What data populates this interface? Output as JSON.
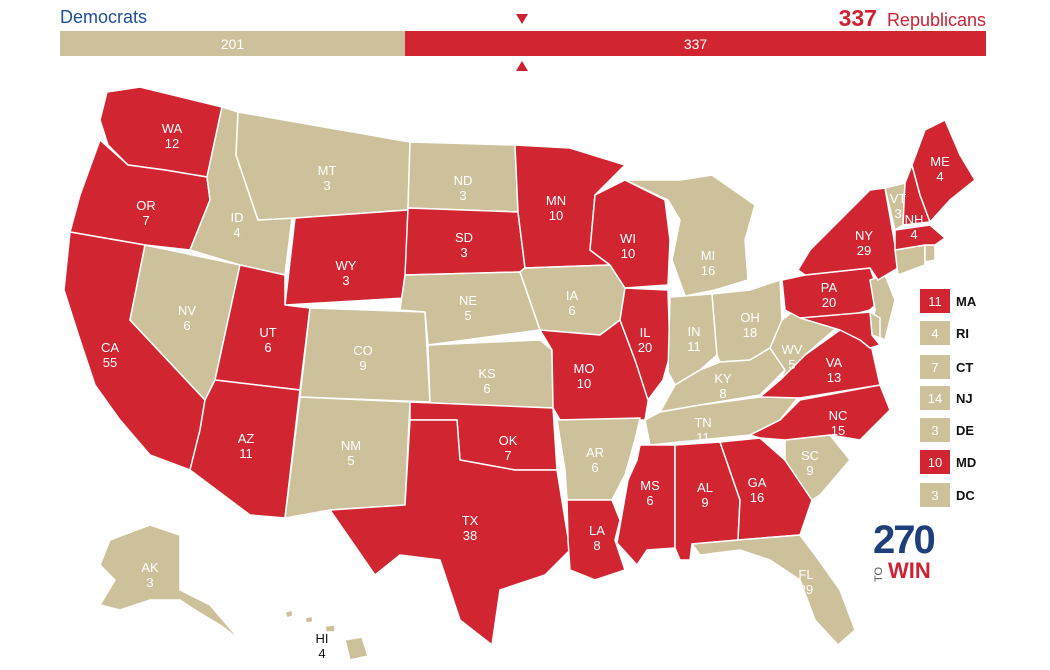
{
  "header": {
    "dem_label": "Democrats",
    "rep_label": "Republicans",
    "rep_total": "337"
  },
  "tally": {
    "dem": "201",
    "rep": "337"
  },
  "colors": {
    "rep": "#d12532",
    "dem": "#cdc19b",
    "border": "#ffffff"
  },
  "states": {
    "WA": {
      "name": "WA",
      "ev": "12",
      "party": "rep"
    },
    "OR": {
      "name": "OR",
      "ev": "7",
      "party": "rep"
    },
    "CA": {
      "name": "CA",
      "ev": "55",
      "party": "rep"
    },
    "NV": {
      "name": "NV",
      "ev": "6",
      "party": "dem"
    },
    "ID": {
      "name": "ID",
      "ev": "4",
      "party": "dem"
    },
    "MT": {
      "name": "MT",
      "ev": "3",
      "party": "dem"
    },
    "WY": {
      "name": "WY",
      "ev": "3",
      "party": "rep"
    },
    "UT": {
      "name": "UT",
      "ev": "6",
      "party": "rep"
    },
    "AZ": {
      "name": "AZ",
      "ev": "11",
      "party": "rep"
    },
    "CO": {
      "name": "CO",
      "ev": "9",
      "party": "dem"
    },
    "NM": {
      "name": "NM",
      "ev": "5",
      "party": "dem"
    },
    "ND": {
      "name": "ND",
      "ev": "3",
      "party": "dem"
    },
    "SD": {
      "name": "SD",
      "ev": "3",
      "party": "rep"
    },
    "NE": {
      "name": "NE",
      "ev": "5",
      "party": "dem"
    },
    "KS": {
      "name": "KS",
      "ev": "6",
      "party": "dem"
    },
    "OK": {
      "name": "OK",
      "ev": "7",
      "party": "rep"
    },
    "TX": {
      "name": "TX",
      "ev": "38",
      "party": "rep"
    },
    "MN": {
      "name": "MN",
      "ev": "10",
      "party": "rep"
    },
    "IA": {
      "name": "IA",
      "ev": "6",
      "party": "dem"
    },
    "MO": {
      "name": "MO",
      "ev": "10",
      "party": "rep"
    },
    "AR": {
      "name": "AR",
      "ev": "6",
      "party": "dem"
    },
    "LA": {
      "name": "LA",
      "ev": "8",
      "party": "rep"
    },
    "WI": {
      "name": "WI",
      "ev": "10",
      "party": "rep"
    },
    "IL": {
      "name": "IL",
      "ev": "20",
      "party": "rep"
    },
    "MI": {
      "name": "MI",
      "ev": "16",
      "party": "dem"
    },
    "IN": {
      "name": "IN",
      "ev": "11",
      "party": "dem"
    },
    "OH": {
      "name": "OH",
      "ev": "18",
      "party": "dem"
    },
    "KY": {
      "name": "KY",
      "ev": "8",
      "party": "dem"
    },
    "TN": {
      "name": "TN",
      "ev": "11",
      "party": "dem"
    },
    "MS": {
      "name": "MS",
      "ev": "6",
      "party": "rep"
    },
    "AL": {
      "name": "AL",
      "ev": "9",
      "party": "rep"
    },
    "GA": {
      "name": "GA",
      "ev": "16",
      "party": "rep"
    },
    "FL": {
      "name": "FL",
      "ev": "29",
      "party": "dem"
    },
    "SC": {
      "name": "SC",
      "ev": "9",
      "party": "dem"
    },
    "NC": {
      "name": "NC",
      "ev": "15",
      "party": "rep"
    },
    "VA": {
      "name": "VA",
      "ev": "13",
      "party": "rep"
    },
    "WV": {
      "name": "WV",
      "ev": "5",
      "party": "dem"
    },
    "PA": {
      "name": "PA",
      "ev": "20",
      "party": "rep"
    },
    "NY": {
      "name": "NY",
      "ev": "29",
      "party": "rep"
    },
    "VT": {
      "name": "VT",
      "ev": "3",
      "party": "dem"
    },
    "NH": {
      "name": "NH",
      "ev": "4",
      "party": "rep"
    },
    "ME": {
      "name": "ME",
      "ev": "4",
      "party": "rep"
    },
    "AK": {
      "name": "AK",
      "ev": "3",
      "party": "dem"
    },
    "HI": {
      "name": "HI",
      "ev": "4",
      "party": "dem"
    }
  },
  "legend": [
    {
      "code": "MA",
      "ev": "11",
      "party": "rep"
    },
    {
      "code": "RI",
      "ev": "4",
      "party": "dem"
    },
    {
      "code": "CT",
      "ev": "7",
      "party": "dem"
    },
    {
      "code": "NJ",
      "ev": "14",
      "party": "dem"
    },
    {
      "code": "DE",
      "ev": "3",
      "party": "dem"
    },
    {
      "code": "MD",
      "ev": "10",
      "party": "rep"
    },
    {
      "code": "DC",
      "ev": "3",
      "party": "dem"
    }
  ],
  "logo": {
    "number": "270",
    "to": "TO",
    "win": "WIN"
  }
}
